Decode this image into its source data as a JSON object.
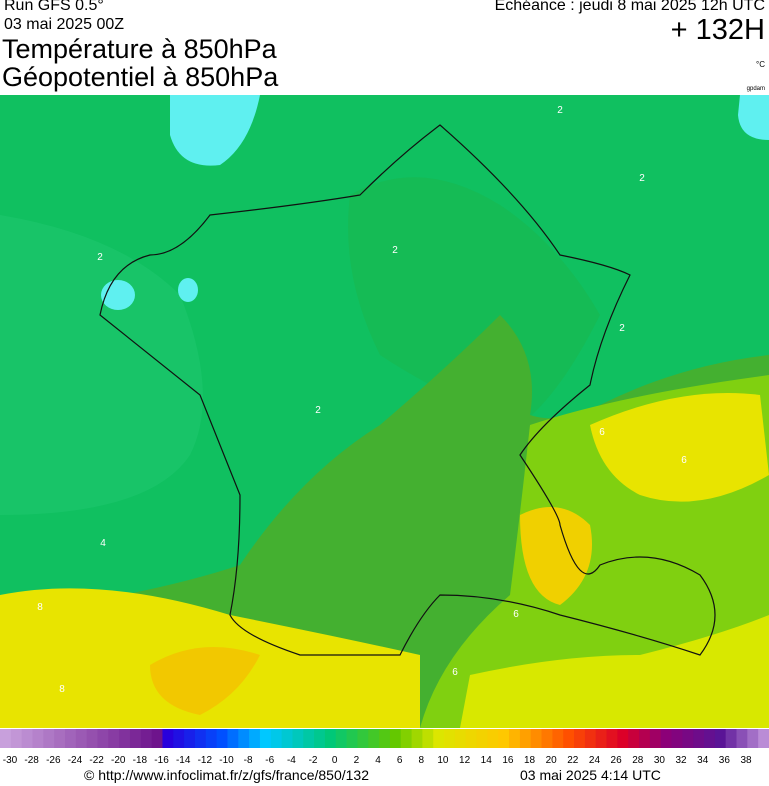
{
  "header": {
    "run": "Run GFS 0.5°",
    "run_date": "03 mai 2025 00Z",
    "title_1": "Température à 850hPa",
    "title_2": "Géopotentiel à 850hPa",
    "valid": "Echéance : jeudi 8 mai 2025 12h UTC",
    "lead": "+ 132H",
    "unit": "°C",
    "unit_2": "gpdam"
  },
  "map": {
    "contour_labels": [
      "2",
      "2",
      "2",
      "2",
      "2",
      "2",
      "4",
      "6",
      "6",
      "6",
      "8",
      "8",
      "6"
    ]
  },
  "scale": {
    "labels": [
      -30,
      -28,
      -26,
      -24,
      -22,
      -20,
      -18,
      -16,
      -14,
      -12,
      -10,
      -8,
      -6,
      -4,
      -2,
      0,
      2,
      4,
      6,
      8,
      10,
      12,
      14,
      16,
      18,
      20,
      22,
      24,
      26,
      28,
      30,
      32,
      34,
      36,
      38
    ]
  },
  "footer": {
    "url": "© http://www.infoclimat.fr/z/gfs/france/850/132",
    "time": "03 mai 2025  4:14 UTC"
  }
}
